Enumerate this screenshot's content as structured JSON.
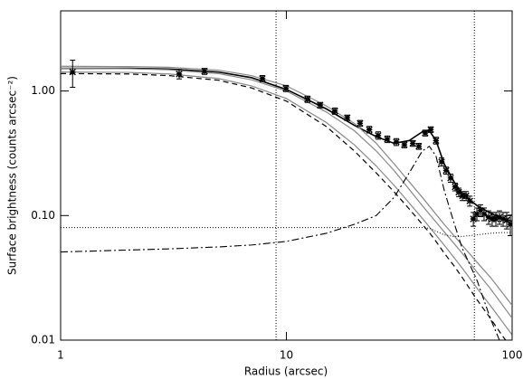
{
  "chart_data": {
    "type": "line",
    "xlabel": "Radius (arcsec)",
    "ylabel": "Surface brightness (counts arcsec⁻²)",
    "xlim": [
      1,
      100
    ],
    "ylim": [
      0.01,
      4.4
    ],
    "xscale": "log",
    "yscale": "log",
    "xticks": [
      1,
      10,
      100
    ],
    "yticks": [
      0.01,
      {
        "value": 0.1,
        "label": "0.10"
      },
      {
        "value": 1,
        "label": "1.00"
      }
    ],
    "vlines": [
      9,
      68
    ],
    "series": [
      {
        "kind": "errorbar",
        "color": "#000000",
        "x": [
          1.13,
          3.35,
          4.34,
          7.83,
          9.95,
          12.4,
          14.1,
          16.4,
          18.6,
          21.2,
          23.3,
          25.5,
          28.0,
          30.7,
          33.3,
          36.3,
          38.6,
          41.2,
          43.6,
          46.0,
          48.7,
          51.0,
          53.4,
          55.9,
          58.0,
          60.2,
          62.5,
          64.9,
          67.3,
          69.8,
          72.4,
          75.1,
          78.7,
          81.6,
          84.7,
          87.9,
          91.2,
          94.6,
          98.2
        ],
        "values": [
          1.42,
          1.37,
          1.44,
          1.26,
          1.05,
          0.86,
          0.77,
          0.69,
          0.61,
          0.55,
          0.49,
          0.44,
          0.41,
          0.39,
          0.37,
          0.38,
          0.36,
          0.46,
          0.49,
          0.4,
          0.27,
          0.23,
          0.2,
          0.17,
          0.154,
          0.144,
          0.144,
          0.131,
          0.094,
          0.103,
          0.11,
          0.103,
          0.097,
          0.094,
          0.094,
          0.097,
          0.094,
          0.092,
          0.085
        ],
        "errors": [
          0.35,
          0.12,
          0.08,
          0.07,
          0.06,
          0.05,
          0.04,
          0.04,
          0.03,
          0.03,
          0.03,
          0.03,
          0.025,
          0.025,
          0.02,
          0.02,
          0.02,
          0.025,
          0.025,
          0.025,
          0.02,
          0.015,
          0.015,
          0.012,
          0.012,
          0.012,
          0.012,
          0.012,
          0.012,
          0.012,
          0.012,
          0.012,
          0.012,
          0.012,
          0.012,
          0.012,
          0.012,
          0.014,
          0.016
        ]
      },
      {
        "kind": "line",
        "style": "solid",
        "color": "#000000",
        "width": 1.6,
        "x": [
          1,
          2,
          3,
          5,
          7,
          10,
          15,
          20,
          25,
          30,
          35,
          40,
          43,
          46,
          50,
          55,
          60,
          70,
          80,
          90,
          100
        ],
        "values": [
          1.52,
          1.52,
          1.5,
          1.42,
          1.28,
          1.03,
          0.72,
          0.53,
          0.43,
          0.38,
          0.4,
          0.47,
          0.48,
          0.4,
          0.26,
          0.19,
          0.15,
          0.12,
          0.105,
          0.095,
          0.09
        ]
      },
      {
        "kind": "line",
        "style": "solid",
        "color": "#888888",
        "width": 1.2,
        "x": [
          1,
          2,
          3,
          5,
          7,
          10,
          15,
          20,
          25,
          30,
          40,
          50,
          60,
          70,
          80,
          100
        ],
        "values": [
          1.58,
          1.57,
          1.55,
          1.47,
          1.33,
          1.1,
          0.76,
          0.55,
          0.38,
          0.26,
          0.14,
          0.085,
          0.058,
          0.042,
          0.032,
          0.019
        ]
      },
      {
        "kind": "line",
        "style": "solid",
        "color": "#888888",
        "width": 1.2,
        "x": [
          1,
          2,
          3,
          5,
          7,
          10,
          15,
          20,
          25,
          30,
          40,
          50,
          60,
          70,
          80,
          100
        ],
        "values": [
          1.52,
          1.51,
          1.48,
          1.38,
          1.23,
          1.0,
          0.68,
          0.48,
          0.33,
          0.23,
          0.12,
          0.074,
          0.05,
          0.035,
          0.026,
          0.015
        ]
      },
      {
        "kind": "line",
        "style": "solid",
        "color": "#888888",
        "width": 1.2,
        "x": [
          1,
          2,
          3,
          5,
          7,
          10,
          15,
          20,
          25,
          30,
          40,
          50,
          60,
          70,
          80,
          100
        ],
        "values": [
          1.42,
          1.41,
          1.37,
          1.26,
          1.1,
          0.87,
          0.56,
          0.37,
          0.25,
          0.175,
          0.095,
          0.058,
          0.038,
          0.026,
          0.019,
          0.011
        ]
      },
      {
        "kind": "line",
        "style": "dashed",
        "color": "#000000",
        "width": 1.2,
        "x": [
          1,
          2,
          3,
          5,
          7,
          10,
          15,
          20,
          25,
          30,
          35,
          40,
          43,
          46,
          50,
          55,
          60,
          70,
          80,
          90,
          100
        ],
        "values": [
          1.38,
          1.37,
          1.33,
          1.22,
          1.06,
          0.83,
          0.52,
          0.33,
          0.22,
          0.155,
          0.113,
          0.085,
          0.073,
          0.062,
          0.05,
          0.04,
          0.032,
          0.021,
          0.015,
          0.011,
          0.0085
        ]
      },
      {
        "kind": "line",
        "style": "dashdot",
        "color": "#000000",
        "width": 1.1,
        "x": [
          1,
          3,
          5,
          7,
          10,
          15,
          20,
          25,
          30,
          35,
          40,
          43,
          46,
          50,
          55,
          60,
          70,
          80,
          90
        ],
        "values": [
          0.051,
          0.054,
          0.056,
          0.058,
          0.062,
          0.072,
          0.085,
          0.1,
          0.14,
          0.22,
          0.33,
          0.36,
          0.3,
          0.16,
          0.09,
          0.055,
          0.03,
          0.015,
          0.009
        ]
      },
      {
        "kind": "line",
        "style": "dotted",
        "color": "#000000",
        "width": 1,
        "x": [
          1,
          10,
          40,
          43,
          46,
          50,
          55,
          60,
          70,
          80,
          90,
          100
        ],
        "values": [
          0.08,
          0.08,
          0.08,
          0.079,
          0.075,
          0.07,
          0.068,
          0.068,
          0.07,
          0.072,
          0.073,
          0.073
        ]
      }
    ]
  }
}
